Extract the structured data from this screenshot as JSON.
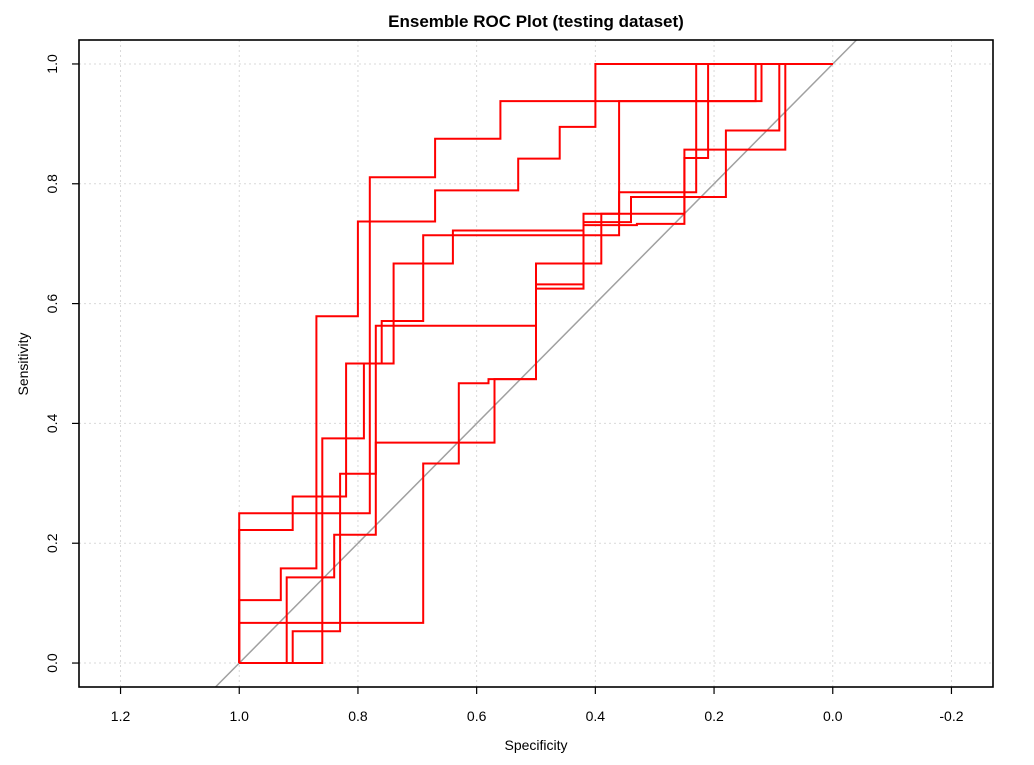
{
  "chart_data": {
    "type": "line",
    "title": "Ensemble ROC Plot (testing dataset)",
    "xlabel": "Specificity",
    "ylabel": "Sensitivity",
    "xlim": [
      1.27,
      -0.27
    ],
    "ylim": [
      -0.04,
      1.04
    ],
    "x_reversed": true,
    "xticks": [
      1.2,
      1.0,
      0.8,
      0.6,
      0.4,
      0.2,
      0.0,
      -0.2
    ],
    "xtick_labels": [
      "1.2",
      "1.0",
      "0.8",
      "0.6",
      "0.4",
      "0.2",
      "0.0",
      "-0.2"
    ],
    "yticks": [
      0.0,
      0.2,
      0.4,
      0.6,
      0.8,
      1.0
    ],
    "ytick_labels": [
      "0.0",
      "0.2",
      "0.4",
      "0.6",
      "0.8",
      "1.0"
    ],
    "grid": true,
    "legend": "none",
    "line_color": "#ff0000",
    "diagonal": {
      "from": [
        1.0,
        0.0
      ],
      "to": [
        0.0,
        1.0
      ],
      "color": "#a0a0a0"
    },
    "series": [
      {
        "points": [
          [
            1.0,
            0.0
          ],
          [
            1.0,
            0.25
          ],
          [
            0.78,
            0.25
          ],
          [
            0.78,
            0.811
          ],
          [
            0.67,
            0.811
          ],
          [
            0.67,
            0.875
          ],
          [
            0.56,
            0.875
          ],
          [
            0.56,
            0.938
          ],
          [
            0.12,
            0.938
          ],
          [
            0.12,
            1.0
          ],
          [
            0.0,
            1.0
          ]
        ]
      },
      {
        "points": [
          [
            1.0,
            0.0
          ],
          [
            1.0,
            0.222
          ],
          [
            0.91,
            0.222
          ],
          [
            0.91,
            0.278
          ],
          [
            0.82,
            0.278
          ],
          [
            0.82,
            0.5
          ],
          [
            0.76,
            0.5
          ],
          [
            0.76,
            0.571
          ],
          [
            0.69,
            0.571
          ],
          [
            0.69,
            0.714
          ],
          [
            0.5,
            0.714
          ],
          [
            0.5,
            0.714
          ],
          [
            0.36,
            0.714
          ],
          [
            0.36,
            0.938
          ],
          [
            0.13,
            0.938
          ],
          [
            0.13,
            1.0
          ],
          [
            0.0,
            1.0
          ]
        ]
      },
      {
        "points": [
          [
            1.0,
            0.0
          ],
          [
            1.0,
            0.067
          ],
          [
            0.69,
            0.067
          ],
          [
            0.69,
            0.333
          ],
          [
            0.63,
            0.333
          ],
          [
            0.63,
            0.467
          ],
          [
            0.58,
            0.467
          ],
          [
            0.58,
            0.474
          ],
          [
            0.5,
            0.474
          ],
          [
            0.5,
            0.667
          ],
          [
            0.39,
            0.667
          ],
          [
            0.39,
            0.75
          ],
          [
            0.36,
            0.75
          ],
          [
            0.36,
            0.786
          ],
          [
            0.23,
            0.786
          ],
          [
            0.23,
            1.0
          ],
          [
            0.0,
            1.0
          ]
        ]
      },
      {
        "points": [
          [
            1.0,
            0.0
          ],
          [
            0.86,
            0.0
          ],
          [
            0.86,
            0.375
          ],
          [
            0.79,
            0.375
          ],
          [
            0.79,
            0.5
          ],
          [
            0.74,
            0.5
          ],
          [
            0.74,
            0.667
          ],
          [
            0.64,
            0.667
          ],
          [
            0.64,
            0.722
          ],
          [
            0.42,
            0.722
          ],
          [
            0.42,
            0.75
          ],
          [
            0.4,
            0.75
          ],
          [
            0.4,
            0.75
          ],
          [
            0.25,
            0.75
          ],
          [
            0.25,
            0.843
          ],
          [
            0.21,
            0.843
          ],
          [
            0.21,
            1.0
          ],
          [
            0.0,
            1.0
          ]
        ]
      },
      {
        "points": [
          [
            1.0,
            0.0
          ],
          [
            0.92,
            0.0
          ],
          [
            0.92,
            0.143
          ],
          [
            0.84,
            0.143
          ],
          [
            0.84,
            0.214
          ],
          [
            0.77,
            0.214
          ],
          [
            0.77,
            0.563
          ],
          [
            0.5,
            0.563
          ],
          [
            0.5,
            0.625
          ],
          [
            0.42,
            0.625
          ],
          [
            0.42,
            0.736
          ],
          [
            0.34,
            0.736
          ],
          [
            0.34,
            0.778
          ],
          [
            0.18,
            0.778
          ],
          [
            0.18,
            0.889
          ],
          [
            0.09,
            0.889
          ],
          [
            0.09,
            1.0
          ],
          [
            0.0,
            1.0
          ]
        ]
      },
      {
        "points": [
          [
            1.0,
            0.0
          ],
          [
            0.91,
            0.0
          ],
          [
            0.91,
            0.053
          ],
          [
            0.83,
            0.053
          ],
          [
            0.83,
            0.316
          ],
          [
            0.77,
            0.316
          ],
          [
            0.77,
            0.368
          ],
          [
            0.62,
            0.368
          ],
          [
            0.62,
            0.368
          ],
          [
            0.57,
            0.368
          ],
          [
            0.57,
            0.474
          ],
          [
            0.5,
            0.474
          ],
          [
            0.5,
            0.632
          ],
          [
            0.42,
            0.632
          ],
          [
            0.42,
            0.731
          ],
          [
            0.33,
            0.731
          ],
          [
            0.33,
            0.733
          ],
          [
            0.25,
            0.733
          ],
          [
            0.25,
            0.857
          ],
          [
            0.08,
            0.857
          ],
          [
            0.08,
            1.0
          ],
          [
            0.0,
            1.0
          ]
        ]
      },
      {
        "points": [
          [
            1.0,
            0.0
          ],
          [
            1.0,
            0.105
          ],
          [
            0.93,
            0.105
          ],
          [
            0.93,
            0.158
          ],
          [
            0.87,
            0.158
          ],
          [
            0.87,
            0.579
          ],
          [
            0.8,
            0.579
          ],
          [
            0.8,
            0.737
          ],
          [
            0.67,
            0.737
          ],
          [
            0.67,
            0.789
          ],
          [
            0.53,
            0.789
          ],
          [
            0.53,
            0.842
          ],
          [
            0.46,
            0.842
          ],
          [
            0.46,
            0.895
          ],
          [
            0.4,
            0.895
          ],
          [
            0.4,
            1.0
          ],
          [
            0.29,
            1.0
          ],
          [
            0.29,
            1.0
          ],
          [
            0.0,
            1.0
          ]
        ]
      }
    ]
  }
}
